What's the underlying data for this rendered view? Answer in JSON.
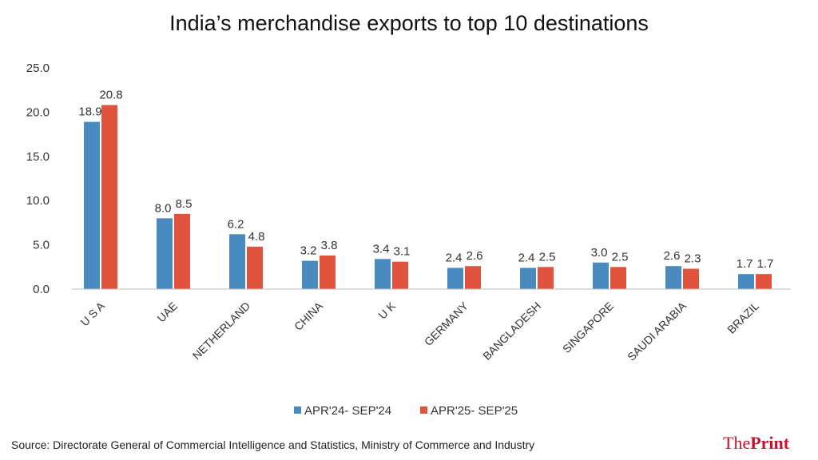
{
  "chart_data": {
    "type": "bar",
    "title": "India’s merchandise exports to top 10 destinations",
    "categories": [
      "U S A",
      "UAE",
      "NETHERLAND",
      "CHINA",
      "U K",
      "GERMANY",
      "BANGLADESH",
      "SINGAPORE",
      "SAUDI ARABIA",
      "BRAZIL"
    ],
    "series": [
      {
        "name": "APR'24- SEP'24",
        "color": "#4a8bbf",
        "values": [
          18.9,
          8.0,
          6.2,
          3.2,
          3.4,
          2.4,
          2.4,
          3.0,
          2.6,
          1.7
        ],
        "labels": [
          "18.9",
          "8.0",
          "6.2",
          "3.2",
          "3.4",
          "2.4",
          "2.4",
          "3.0",
          "2.6",
          "1.7"
        ]
      },
      {
        "name": "APR'25- SEP'25",
        "color": "#e0533d",
        "values": [
          20.8,
          8.5,
          4.8,
          3.8,
          3.1,
          2.6,
          2.5,
          2.5,
          2.3,
          1.7
        ],
        "labels": [
          "20.8",
          "8.5",
          "4.8",
          "3.8",
          "3.1",
          "2.6",
          "2.5",
          "2.5",
          "2.3",
          "1.7"
        ]
      }
    ],
    "ylim": [
      0,
      25
    ],
    "yticks": [
      "0.0",
      "5.0",
      "10.0",
      "15.0",
      "20.0",
      "25.0"
    ],
    "xlabel": "",
    "ylabel": "",
    "legend": "bottom"
  },
  "source": "Source: Directorate General of Commercial Intelligence and Statistics, Ministry of Commerce and Industry",
  "brand": {
    "part1": "The",
    "part2": "Print"
  }
}
